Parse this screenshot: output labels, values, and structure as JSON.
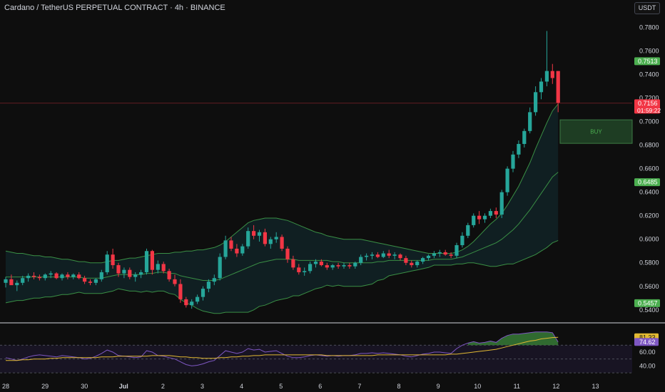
{
  "header": {
    "title": "Cardano / TetherUS PERPETUAL CONTRACT · 4h · BINANCE",
    "currency": "USDT"
  },
  "colors": {
    "up": "#26a69a",
    "down": "#f23645",
    "band": "#3a8f45",
    "rsi_line": "#7e57c2",
    "rsi_ma": "#e2b933",
    "background": "#0e0e0e",
    "buy_zone": "#1e3d23"
  },
  "chart_data": [
    {
      "type": "candlestick",
      "title": "",
      "ylim": [
        0.532,
        0.79
      ],
      "y_ticks": [
        "0.7800",
        "0.7600",
        "0.7400",
        "0.7200",
        "0.7000",
        "0.6800",
        "0.6600",
        "0.6400",
        "0.6200",
        "0.6000",
        "0.5800",
        "0.5600",
        "0.5400"
      ],
      "x_ticks": [
        "28",
        "29",
        "30",
        "Jul",
        "2",
        "3",
        "4",
        "5",
        "6",
        "7",
        "8",
        "9",
        "10",
        "11",
        "12",
        "13"
      ],
      "price_labels": [
        {
          "text": "0.7513",
          "value": 0.7513,
          "color": "#4caf50"
        },
        {
          "text": "0.7156",
          "sub": "01:59:22",
          "value": 0.7156,
          "color": "#f23645"
        },
        {
          "text": "0.6485",
          "value": 0.6485,
          "color": "#4caf50"
        },
        {
          "text": "0.5457",
          "value": 0.5457,
          "color": "#4caf50"
        }
      ],
      "current_price": 0.7156,
      "buy_zone": {
        "label": "BUY",
        "top": 0.7015,
        "bottom": 0.6815
      },
      "candles": [
        [
          0.563,
          0.568,
          0.559,
          0.566
        ],
        [
          0.566,
          0.57,
          0.562,
          0.561
        ],
        [
          0.561,
          0.565,
          0.556,
          0.563
        ],
        [
          0.563,
          0.569,
          0.561,
          0.567
        ],
        [
          0.567,
          0.571,
          0.564,
          0.569
        ],
        [
          0.569,
          0.572,
          0.566,
          0.568
        ],
        [
          0.568,
          0.57,
          0.565,
          0.567
        ],
        [
          0.567,
          0.571,
          0.565,
          0.57
        ],
        [
          0.57,
          0.573,
          0.567,
          0.571
        ],
        [
          0.571,
          0.572,
          0.566,
          0.567
        ],
        [
          0.567,
          0.571,
          0.565,
          0.57
        ],
        [
          0.57,
          0.572,
          0.566,
          0.568
        ],
        [
          0.568,
          0.571,
          0.566,
          0.57
        ],
        [
          0.57,
          0.572,
          0.566,
          0.567
        ],
        [
          0.567,
          0.569,
          0.562,
          0.564
        ],
        [
          0.564,
          0.566,
          0.561,
          0.563
        ],
        [
          0.563,
          0.567,
          0.561,
          0.566
        ],
        [
          0.566,
          0.574,
          0.564,
          0.572
        ],
        [
          0.572,
          0.59,
          0.57,
          0.587
        ],
        [
          0.587,
          0.592,
          0.575,
          0.578
        ],
        [
          0.578,
          0.58,
          0.568,
          0.571
        ],
        [
          0.571,
          0.576,
          0.567,
          0.574
        ],
        [
          0.574,
          0.576,
          0.566,
          0.568
        ],
        [
          0.568,
          0.572,
          0.564,
          0.57
        ],
        [
          0.57,
          0.574,
          0.567,
          0.572
        ],
        [
          0.572,
          0.592,
          0.57,
          0.59
        ],
        [
          0.59,
          0.591,
          0.57,
          0.574
        ],
        [
          0.574,
          0.582,
          0.571,
          0.579
        ],
        [
          0.579,
          0.581,
          0.571,
          0.573
        ],
        [
          0.573,
          0.575,
          0.564,
          0.566
        ],
        [
          0.566,
          0.57,
          0.56,
          0.562
        ],
        [
          0.562,
          0.566,
          0.546,
          0.549
        ],
        [
          0.549,
          0.551,
          0.542,
          0.544
        ],
        [
          0.544,
          0.549,
          0.541,
          0.547
        ],
        [
          0.547,
          0.553,
          0.545,
          0.551
        ],
        [
          0.551,
          0.56,
          0.548,
          0.558
        ],
        [
          0.558,
          0.566,
          0.555,
          0.564
        ],
        [
          0.564,
          0.57,
          0.561,
          0.567
        ],
        [
          0.567,
          0.588,
          0.565,
          0.585
        ],
        [
          0.585,
          0.603,
          0.583,
          0.599
        ],
        [
          0.599,
          0.602,
          0.59,
          0.592
        ],
        [
          0.592,
          0.596,
          0.585,
          0.588
        ],
        [
          0.588,
          0.596,
          0.586,
          0.594
        ],
        [
          0.594,
          0.61,
          0.592,
          0.607
        ],
        [
          0.607,
          0.612,
          0.6,
          0.603
        ],
        [
          0.603,
          0.608,
          0.598,
          0.606
        ],
        [
          0.606,
          0.609,
          0.594,
          0.596
        ],
        [
          0.596,
          0.602,
          0.592,
          0.6
        ],
        [
          0.6,
          0.606,
          0.597,
          0.602
        ],
        [
          0.602,
          0.604,
          0.59,
          0.592
        ],
        [
          0.592,
          0.594,
          0.58,
          0.583
        ],
        [
          0.583,
          0.586,
          0.574,
          0.576
        ],
        [
          0.576,
          0.579,
          0.57,
          0.572
        ],
        [
          0.572,
          0.576,
          0.569,
          0.573
        ],
        [
          0.573,
          0.581,
          0.571,
          0.579
        ],
        [
          0.579,
          0.583,
          0.576,
          0.581
        ],
        [
          0.581,
          0.583,
          0.577,
          0.578
        ],
        [
          0.578,
          0.58,
          0.574,
          0.576
        ],
        [
          0.576,
          0.579,
          0.574,
          0.578
        ],
        [
          0.578,
          0.58,
          0.575,
          0.577
        ],
        [
          0.577,
          0.58,
          0.575,
          0.578
        ],
        [
          0.578,
          0.58,
          0.575,
          0.577
        ],
        [
          0.577,
          0.581,
          0.575,
          0.58
        ],
        [
          0.58,
          0.587,
          0.578,
          0.585
        ],
        [
          0.585,
          0.588,
          0.582,
          0.586
        ],
        [
          0.586,
          0.589,
          0.583,
          0.587
        ],
        [
          0.587,
          0.589,
          0.584,
          0.585
        ],
        [
          0.585,
          0.59,
          0.584,
          0.588
        ],
        [
          0.588,
          0.591,
          0.584,
          0.586
        ],
        [
          0.586,
          0.589,
          0.583,
          0.587
        ],
        [
          0.587,
          0.588,
          0.582,
          0.584
        ],
        [
          0.584,
          0.586,
          0.578,
          0.58
        ],
        [
          0.58,
          0.582,
          0.576,
          0.578
        ],
        [
          0.578,
          0.582,
          0.576,
          0.581
        ],
        [
          0.581,
          0.585,
          0.579,
          0.584
        ],
        [
          0.584,
          0.587,
          0.582,
          0.586
        ],
        [
          0.586,
          0.59,
          0.584,
          0.588
        ],
        [
          0.588,
          0.591,
          0.585,
          0.589
        ],
        [
          0.589,
          0.591,
          0.586,
          0.587
        ],
        [
          0.587,
          0.589,
          0.584,
          0.586
        ],
        [
          0.586,
          0.597,
          0.584,
          0.595
        ],
        [
          0.595,
          0.606,
          0.593,
          0.603
        ],
        [
          0.603,
          0.614,
          0.601,
          0.612
        ],
        [
          0.612,
          0.622,
          0.61,
          0.62
        ],
        [
          0.62,
          0.624,
          0.613,
          0.617
        ],
        [
          0.617,
          0.622,
          0.614,
          0.62
        ],
        [
          0.62,
          0.626,
          0.618,
          0.624
        ],
        [
          0.624,
          0.627,
          0.618,
          0.621
        ],
        [
          0.621,
          0.642,
          0.618,
          0.64
        ],
        [
          0.64,
          0.662,
          0.637,
          0.66
        ],
        [
          0.66,
          0.675,
          0.657,
          0.672
        ],
        [
          0.672,
          0.684,
          0.669,
          0.681
        ],
        [
          0.681,
          0.694,
          0.678,
          0.692
        ],
        [
          0.692,
          0.712,
          0.69,
          0.708
        ],
        [
          0.708,
          0.73,
          0.705,
          0.725
        ],
        [
          0.725,
          0.737,
          0.719,
          0.734
        ],
        [
          0.734,
          0.777,
          0.73,
          0.743
        ],
        [
          0.743,
          0.749,
          0.732,
          0.737
        ],
        [
          0.743,
          0.743,
          0.708,
          0.716
        ]
      ],
      "bands": {
        "upper": [
          0.59,
          0.589,
          0.588,
          0.588,
          0.587,
          0.586,
          0.586,
          0.585,
          0.585,
          0.584,
          0.583,
          0.583,
          0.582,
          0.581,
          0.581,
          0.58,
          0.58,
          0.58,
          0.581,
          0.582,
          0.582,
          0.583,
          0.584,
          0.584,
          0.585,
          0.586,
          0.587,
          0.588,
          0.588,
          0.588,
          0.589,
          0.589,
          0.59,
          0.59,
          0.591,
          0.591,
          0.592,
          0.593,
          0.595,
          0.598,
          0.602,
          0.606,
          0.61,
          0.614,
          0.616,
          0.617,
          0.618,
          0.618,
          0.618,
          0.617,
          0.616,
          0.614,
          0.612,
          0.61,
          0.608,
          0.606,
          0.605,
          0.603,
          0.602,
          0.601,
          0.6,
          0.6,
          0.6,
          0.6,
          0.599,
          0.598,
          0.597,
          0.596,
          0.595,
          0.594,
          0.593,
          0.592,
          0.591,
          0.59,
          0.589,
          0.588,
          0.588,
          0.588,
          0.588,
          0.588,
          0.589,
          0.591,
          0.594,
          0.598,
          0.603,
          0.608,
          0.613,
          0.617,
          0.622,
          0.629,
          0.637,
          0.645,
          0.655,
          0.665,
          0.677,
          0.688,
          0.699,
          0.709,
          0.715
        ],
        "middle": [
          0.568,
          0.568,
          0.568,
          0.568,
          0.568,
          0.568,
          0.568,
          0.568,
          0.568,
          0.568,
          0.568,
          0.568,
          0.568,
          0.568,
          0.567,
          0.567,
          0.567,
          0.567,
          0.568,
          0.569,
          0.57,
          0.57,
          0.57,
          0.57,
          0.57,
          0.571,
          0.571,
          0.572,
          0.572,
          0.571,
          0.571,
          0.569,
          0.568,
          0.567,
          0.566,
          0.565,
          0.565,
          0.565,
          0.566,
          0.568,
          0.57,
          0.572,
          0.574,
          0.576,
          0.578,
          0.58,
          0.581,
          0.582,
          0.583,
          0.583,
          0.583,
          0.583,
          0.582,
          0.582,
          0.582,
          0.582,
          0.582,
          0.582,
          0.581,
          0.581,
          0.58,
          0.58,
          0.58,
          0.58,
          0.58,
          0.58,
          0.581,
          0.581,
          0.582,
          0.582,
          0.582,
          0.582,
          0.582,
          0.582,
          0.582,
          0.582,
          0.583,
          0.583,
          0.583,
          0.583,
          0.584,
          0.585,
          0.587,
          0.589,
          0.591,
          0.593,
          0.595,
          0.597,
          0.6,
          0.604,
          0.608,
          0.613,
          0.619,
          0.625,
          0.632,
          0.639,
          0.646,
          0.653,
          0.657
        ],
        "lower": [
          0.546,
          0.547,
          0.548,
          0.548,
          0.549,
          0.55,
          0.55,
          0.551,
          0.551,
          0.552,
          0.553,
          0.553,
          0.554,
          0.555,
          0.554,
          0.554,
          0.554,
          0.554,
          0.555,
          0.556,
          0.558,
          0.557,
          0.556,
          0.556,
          0.555,
          0.556,
          0.555,
          0.556,
          0.556,
          0.554,
          0.553,
          0.549,
          0.546,
          0.544,
          0.541,
          0.539,
          0.538,
          0.537,
          0.537,
          0.538,
          0.538,
          0.538,
          0.538,
          0.538,
          0.54,
          0.543,
          0.544,
          0.546,
          0.548,
          0.549,
          0.55,
          0.552,
          0.552,
          0.554,
          0.556,
          0.558,
          0.559,
          0.561,
          0.56,
          0.561,
          0.56,
          0.56,
          0.56,
          0.56,
          0.561,
          0.562,
          0.565,
          0.566,
          0.569,
          0.57,
          0.571,
          0.572,
          0.573,
          0.574,
          0.575,
          0.576,
          0.578,
          0.578,
          0.578,
          0.578,
          0.579,
          0.579,
          0.58,
          0.58,
          0.579,
          0.578,
          0.577,
          0.577,
          0.578,
          0.579,
          0.579,
          0.581,
          0.583,
          0.585,
          0.587,
          0.59,
          0.593,
          0.597,
          0.599
        ]
      }
    },
    {
      "type": "line",
      "title": "",
      "ylim": [
        25,
        95
      ],
      "y_ticks": [
        "60.00",
        "40.00"
      ],
      "levels": {
        "upper": 70,
        "middle": 50,
        "lower": 30
      },
      "value_labels": [
        {
          "text": "81.33",
          "color": "#e2b933"
        },
        {
          "text": "74.62",
          "color": "#7e57c2"
        }
      ],
      "series": [
        {
          "values": [
            52,
            50,
            48,
            50,
            53,
            55,
            56,
            55,
            54,
            53,
            55,
            54,
            53,
            52,
            50,
            51,
            54,
            58,
            63,
            60,
            55,
            54,
            53,
            52,
            53,
            62,
            60,
            55,
            54,
            52,
            50,
            46,
            42,
            40,
            41,
            43,
            46,
            48,
            55,
            62,
            60,
            58,
            60,
            65,
            63,
            64,
            60,
            61,
            62,
            58,
            54,
            52,
            52,
            53,
            55,
            56,
            55,
            54,
            55,
            54,
            55,
            55,
            56,
            58,
            58,
            59,
            58,
            59,
            58,
            57,
            56,
            54,
            53,
            55,
            57,
            58,
            60,
            60,
            59,
            58,
            65,
            70,
            73,
            75,
            73,
            74,
            76,
            74,
            80,
            84,
            86,
            86,
            87,
            88,
            89,
            89,
            89,
            88,
            74.62
          ]
        },
        {
          "values": [
            48,
            48,
            48,
            49,
            49,
            50,
            50,
            50,
            51,
            51,
            52,
            52,
            52,
            52,
            52,
            52,
            52,
            53,
            53,
            53,
            54,
            54,
            54,
            54,
            54,
            54,
            55,
            55,
            55,
            55,
            54,
            53,
            53,
            52,
            52,
            51,
            51,
            51,
            52,
            52,
            53,
            53,
            54,
            54,
            55,
            55,
            56,
            56,
            56,
            56,
            56,
            56,
            56,
            56,
            56,
            56,
            56,
            55,
            55,
            55,
            55,
            55,
            55,
            55,
            55,
            55,
            56,
            56,
            56,
            56,
            56,
            56,
            56,
            56,
            56,
            56,
            56,
            56,
            56,
            57,
            57,
            58,
            59,
            60,
            61,
            62,
            63,
            64,
            66,
            68,
            70,
            72,
            74,
            76,
            77,
            79,
            80,
            81,
            81.33
          ]
        }
      ]
    }
  ]
}
